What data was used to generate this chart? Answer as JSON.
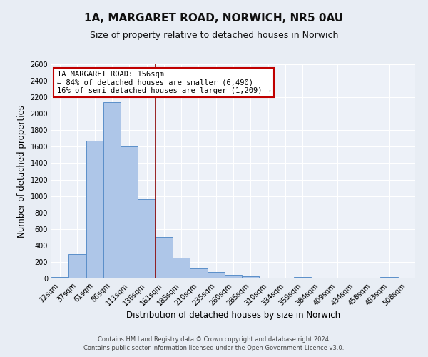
{
  "title": "1A, MARGARET ROAD, NORWICH, NR5 0AU",
  "subtitle": "Size of property relative to detached houses in Norwich",
  "xlabel": "Distribution of detached houses by size in Norwich",
  "ylabel": "Number of detached properties",
  "footer_line1": "Contains HM Land Registry data © Crown copyright and database right 2024.",
  "footer_line2": "Contains public sector information licensed under the Open Government Licence v3.0.",
  "bin_labels": [
    "12sqm",
    "37sqm",
    "61sqm",
    "86sqm",
    "111sqm",
    "136sqm",
    "161sqm",
    "185sqm",
    "210sqm",
    "235sqm",
    "260sqm",
    "285sqm",
    "310sqm",
    "334sqm",
    "359sqm",
    "384sqm",
    "409sqm",
    "434sqm",
    "458sqm",
    "483sqm",
    "508sqm"
  ],
  "bar_values": [
    20,
    295,
    1670,
    2140,
    1600,
    960,
    505,
    250,
    120,
    75,
    40,
    25,
    0,
    0,
    20,
    0,
    0,
    0,
    0,
    20,
    0
  ],
  "bar_color": "#aec6e8",
  "bar_edge_color": "#5b8fc9",
  "bg_color": "#e8edf4",
  "plot_bg_color": "#edf1f8",
  "grid_color": "#ffffff",
  "vline_color": "#8b0000",
  "vline_x_index": 6,
  "annotation_text": "1A MARGARET ROAD: 156sqm\n← 84% of detached houses are smaller (6,490)\n16% of semi-detached houses are larger (1,209) →",
  "annotation_box_facecolor": "#ffffff",
  "annotation_box_edgecolor": "#c00000",
  "ylim": [
    0,
    2600
  ],
  "yticks": [
    0,
    200,
    400,
    600,
    800,
    1000,
    1200,
    1400,
    1600,
    1800,
    2000,
    2200,
    2400,
    2600
  ],
  "title_fontsize": 11,
  "subtitle_fontsize": 9,
  "ylabel_fontsize": 8.5,
  "xlabel_fontsize": 8.5,
  "tick_fontsize": 7,
  "annotation_fontsize": 7.5,
  "footer_fontsize": 6
}
